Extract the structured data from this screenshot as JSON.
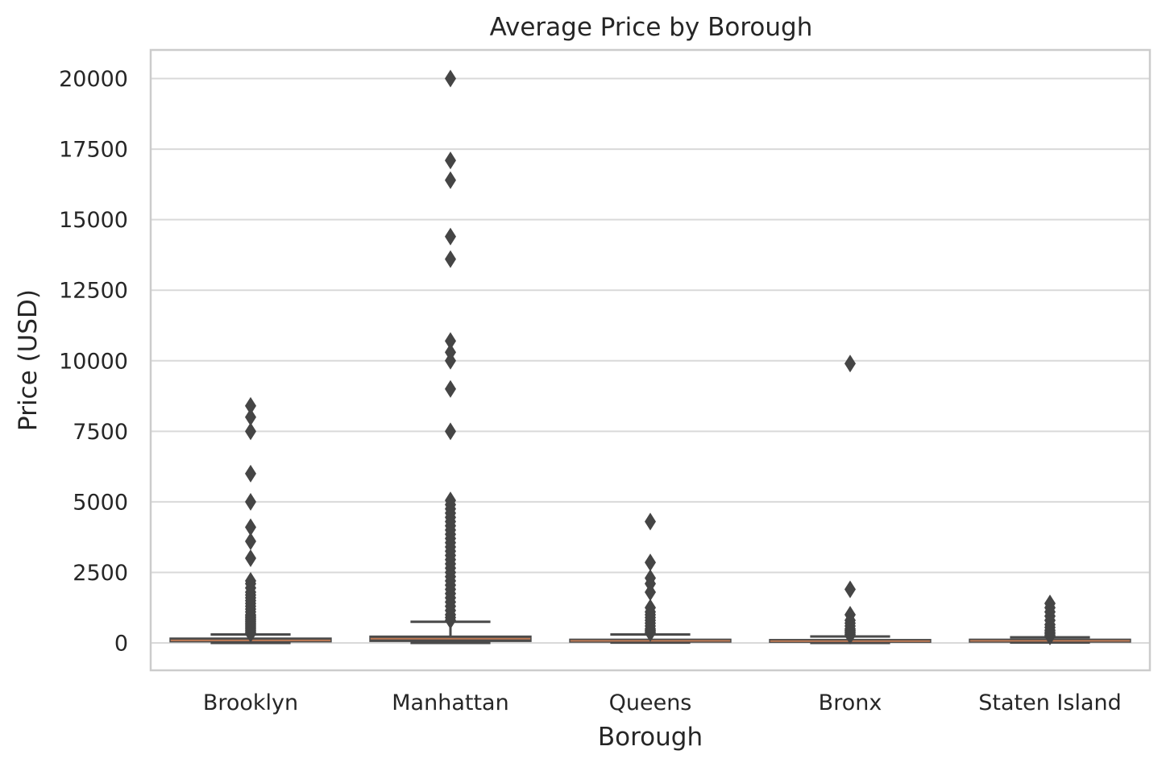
{
  "chart_data": {
    "type": "box",
    "title": "Average Price by Borough",
    "xlabel": "Borough",
    "ylabel": "Price (USD)",
    "ylim": [
      -1000,
      21000
    ],
    "yticks": [
      0,
      2500,
      5000,
      7500,
      10000,
      12500,
      15000,
      17500,
      20000
    ],
    "grid": true,
    "colors": {
      "box_edge": "#4a4a4a",
      "box_fill": "#4a4a4a",
      "median": "#c07a55",
      "grid": "#d9d9d9",
      "spine": "#cccccc"
    },
    "categories": [
      "Brooklyn",
      "Manhattan",
      "Queens",
      "Bronx",
      "Staten Island"
    ],
    "boxes": [
      {
        "category": "Brooklyn",
        "q1": 60,
        "median": 90,
        "q3": 150,
        "whisker_low": 0,
        "whisker_high": 300,
        "outliers": [
          8400,
          8000,
          7500,
          6000,
          5000,
          4100,
          3600,
          3000,
          2200,
          2100,
          1950,
          1800,
          1700,
          1600,
          1500,
          1400,
          1300,
          1200,
          1100,
          1000,
          950,
          900,
          850,
          800,
          750,
          700,
          650,
          600,
          550,
          500,
          450,
          400,
          350,
          320
        ]
      },
      {
        "category": "Manhattan",
        "q1": 75,
        "median": 150,
        "q3": 220,
        "whisker_low": 0,
        "whisker_high": 750,
        "outliers": [
          20000,
          17100,
          16400,
          14400,
          13600,
          10700,
          10300,
          10000,
          9000,
          7500,
          5050,
          4900,
          4750,
          4600,
          4450,
          4300,
          4150,
          4000,
          3850,
          3700,
          3550,
          3400,
          3250,
          3100,
          2950,
          2800,
          2650,
          2500,
          2350,
          2200,
          2050,
          1900,
          1750,
          1600,
          1450,
          1300,
          1150,
          1000,
          900,
          800
        ]
      },
      {
        "category": "Queens",
        "q1": 50,
        "median": 75,
        "q3": 110,
        "whisker_low": 10,
        "whisker_high": 300,
        "outliers": [
          4300,
          2850,
          2300,
          2100,
          1800,
          1250,
          1100,
          1000,
          900,
          800,
          700,
          600,
          500,
          450,
          400,
          350
        ]
      },
      {
        "category": "Bronx",
        "q1": 45,
        "median": 65,
        "q3": 99,
        "whisker_low": 0,
        "whisker_high": 230,
        "outliers": [
          9900,
          1900,
          1000,
          800,
          700,
          600,
          500,
          450,
          400,
          350,
          300,
          260
        ]
      },
      {
        "category": "Staten Island",
        "q1": 50,
        "median": 75,
        "q3": 110,
        "whisker_low": 13,
        "whisker_high": 200,
        "outliers": [
          1400,
          1250,
          1100,
          950,
          800,
          650,
          550,
          450,
          380,
          320,
          260,
          230
        ]
      }
    ]
  }
}
